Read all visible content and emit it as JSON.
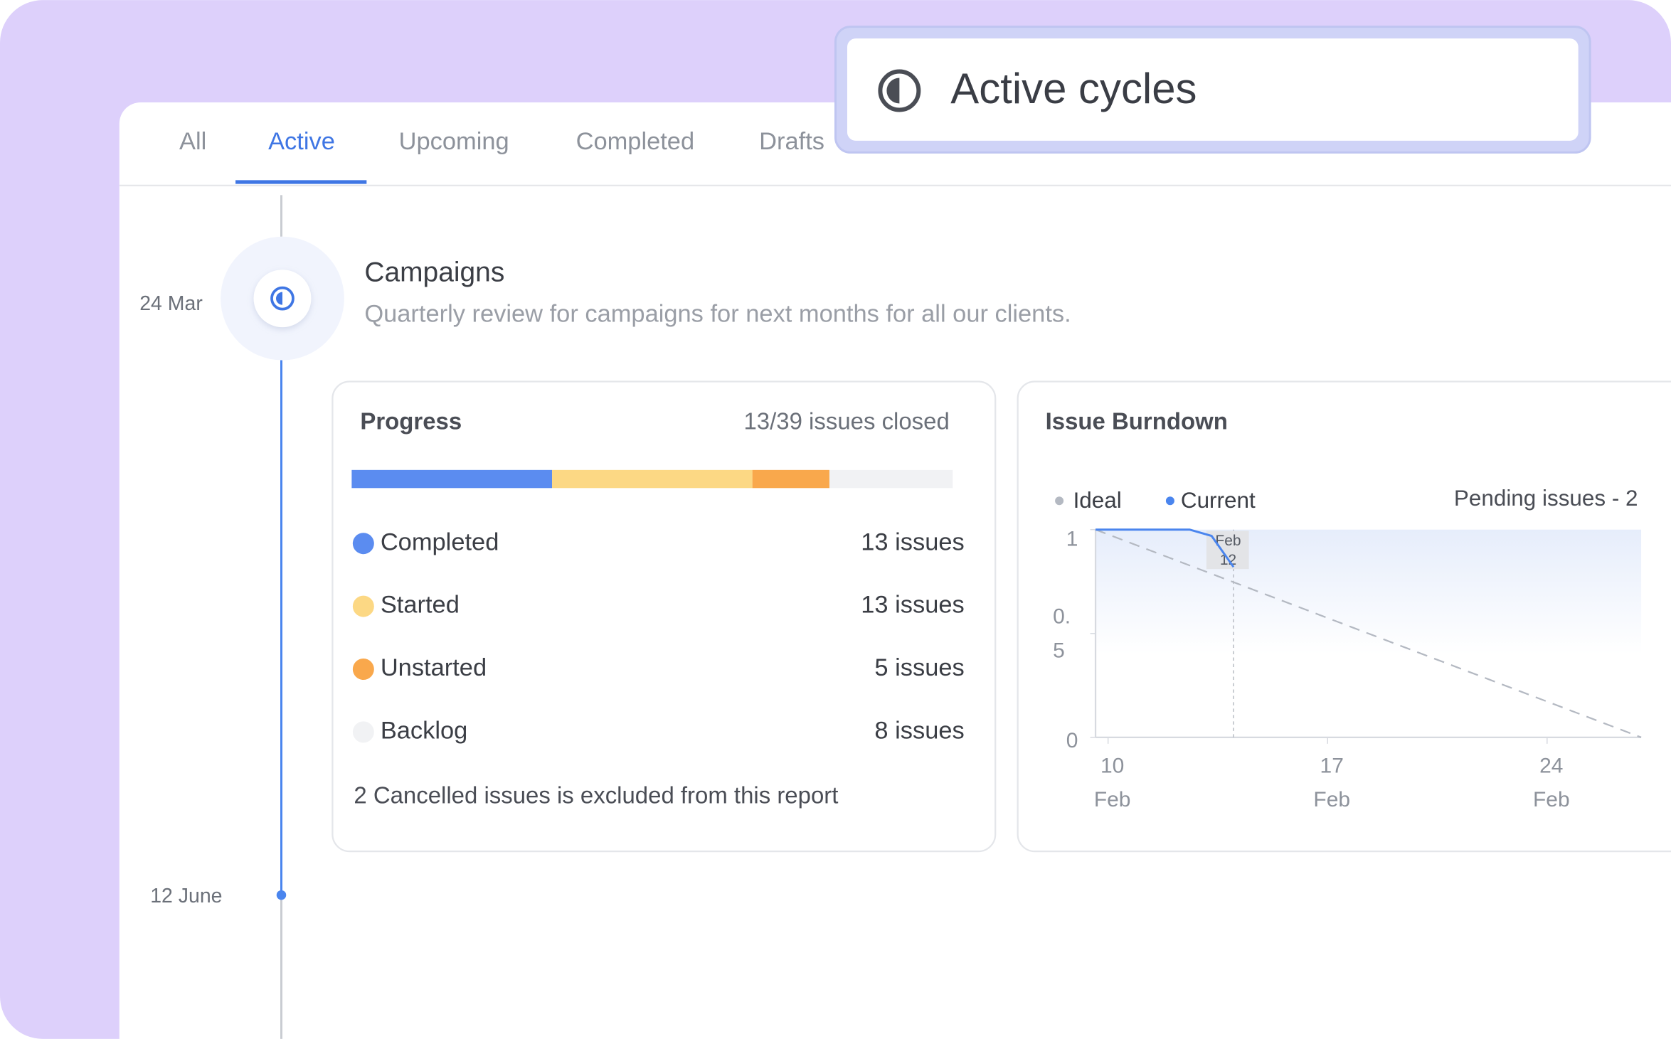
{
  "header": {
    "title": "Active cycles"
  },
  "tabs": [
    "All",
    "Active",
    "Upcoming",
    "Completed",
    "Drafts"
  ],
  "timeline": {
    "start": "24 Mar",
    "end": "12 June"
  },
  "cycle": {
    "name": "Campaigns",
    "description": "Quarterly review for campaigns for next months for all our clients."
  },
  "progress": {
    "title": "Progress",
    "summary": "13/39 issues closed",
    "segments": [
      {
        "name": "Completed",
        "count": 13,
        "label": "13 issues",
        "color": "#5b8cf0"
      },
      {
        "name": "Started",
        "count": 13,
        "label": "13 issues",
        "color": "#fcd884"
      },
      {
        "name": "Unstarted",
        "count": 5,
        "label": "5 issues",
        "color": "#f9a84c"
      },
      {
        "name": "Backlog",
        "count": 8,
        "label": "8 issues",
        "color": "#f1f2f4"
      }
    ],
    "note": "2 Cancelled issues is excluded from this report"
  },
  "burndown": {
    "type": "line",
    "title": "Issue Burndown",
    "pending": "Pending issues - 2",
    "xlim": [
      9.6,
      27
    ],
    "ylim": [
      0,
      1
    ],
    "xticks": [
      {
        "value": 10,
        "label": "10 Feb"
      },
      {
        "value": 17,
        "label": "17 Feb"
      },
      {
        "value": 24,
        "label": "24 Feb"
      }
    ],
    "yticks": [
      0,
      {
        "value": 0.5,
        "label": "0.5"
      },
      1
    ],
    "series": [
      {
        "name": "Ideal",
        "color": "#b4b9c2",
        "dashed": true,
        "x": [
          9.6,
          27
        ],
        "values": [
          1,
          0
        ]
      },
      {
        "name": "Current",
        "color": "#4a85ee",
        "dashed": false,
        "x": [
          9.6,
          12.6,
          13.3,
          14
        ],
        "values": [
          1,
          1,
          0.97,
          0.82
        ]
      }
    ],
    "annotation": {
      "label": "Feb 12",
      "x": 14
    }
  }
}
